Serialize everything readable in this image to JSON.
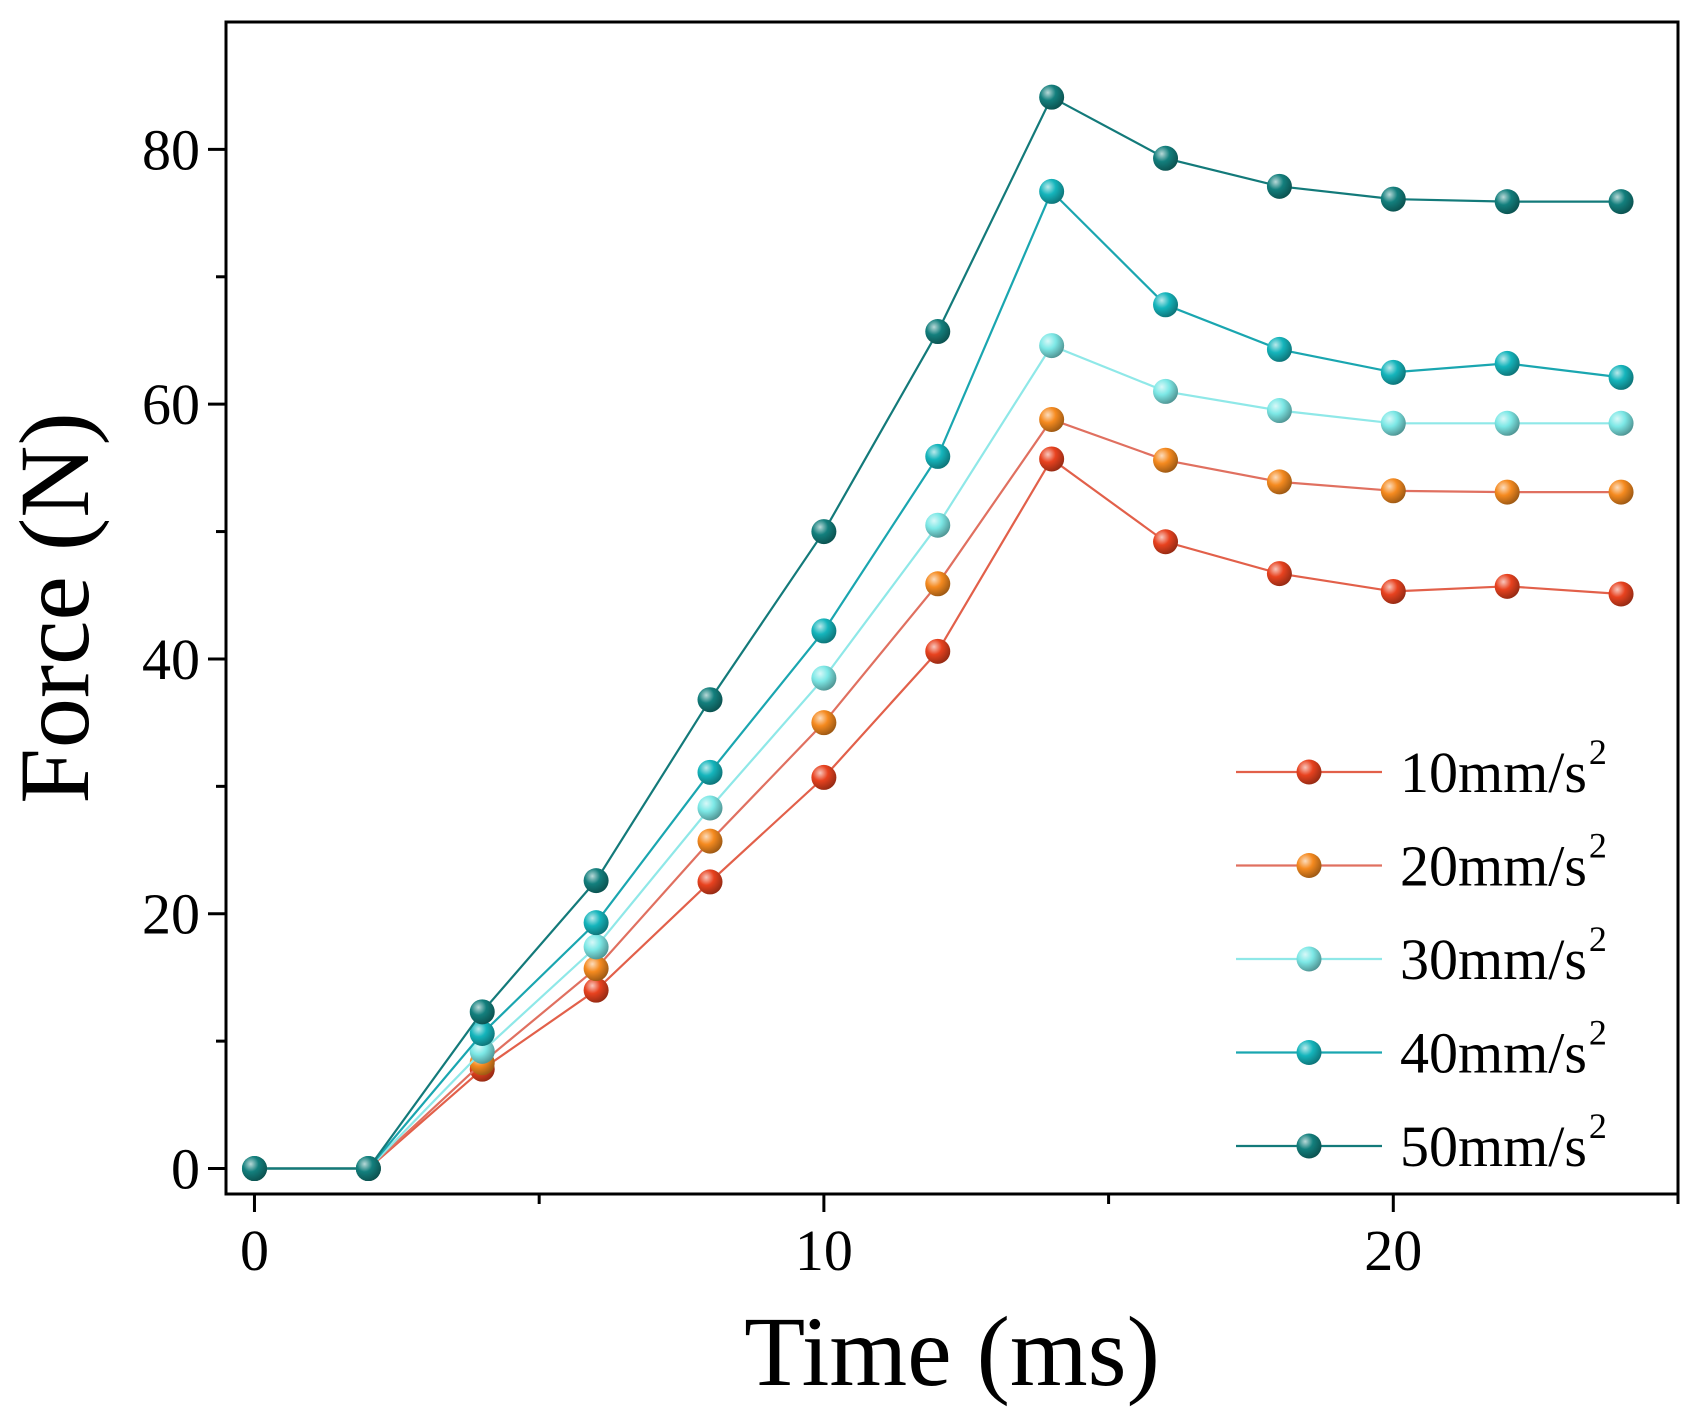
{
  "chart_data": {
    "type": "line",
    "title": "",
    "xlabel": "Time (ms)",
    "ylabel": "Force (N)",
    "xlim": [
      -0.5,
      25
    ],
    "ylim": [
      -2,
      90
    ],
    "xticks": [
      0,
      10,
      20
    ],
    "yticks": [
      0,
      20,
      40,
      60,
      80
    ],
    "x": [
      0,
      2,
      4,
      6,
      8,
      10,
      12,
      14,
      16,
      18,
      20,
      22,
      24
    ],
    "legend_position": "lower-right",
    "series": [
      {
        "name": "10mm/s",
        "name_sup": "2",
        "line_color": "#e2604a",
        "marker_color": "#e8421f",
        "values": [
          0,
          0,
          7.8,
          14,
          22.5,
          30.7,
          40.6,
          55.7,
          49.2,
          46.7,
          45.3,
          45.7,
          45.1
        ]
      },
      {
        "name": "20mm/s",
        "name_sup": "2",
        "line_color": "#e07060",
        "marker_color": "#f58a1f",
        "values": [
          0,
          0,
          8.3,
          15.7,
          25.7,
          35,
          45.9,
          58.8,
          55.6,
          53.9,
          53.2,
          53.1,
          53.1
        ]
      },
      {
        "name": "30mm/s",
        "name_sup": "2",
        "line_color": "#8fe8e8",
        "marker_color": "#7de8e6",
        "values": [
          0,
          0,
          9.2,
          17.4,
          28.3,
          38.5,
          50.5,
          64.6,
          61,
          59.5,
          58.5,
          58.5,
          58.5
        ]
      },
      {
        "name": "40mm/s",
        "name_sup": "2",
        "line_color": "#1aa6b0",
        "marker_color": "#15b5bc",
        "values": [
          0,
          0,
          10.6,
          19.3,
          31.1,
          42.2,
          55.9,
          76.7,
          67.8,
          64.3,
          62.5,
          63.2,
          62.1
        ]
      },
      {
        "name": "50mm/s",
        "name_sup": "2",
        "line_color": "#137a7a",
        "marker_color": "#137f7d",
        "values": [
          0,
          0,
          12.3,
          22.6,
          36.8,
          50,
          65.7,
          84.1,
          79.3,
          77.1,
          76.1,
          75.9,
          75.9
        ]
      }
    ]
  }
}
